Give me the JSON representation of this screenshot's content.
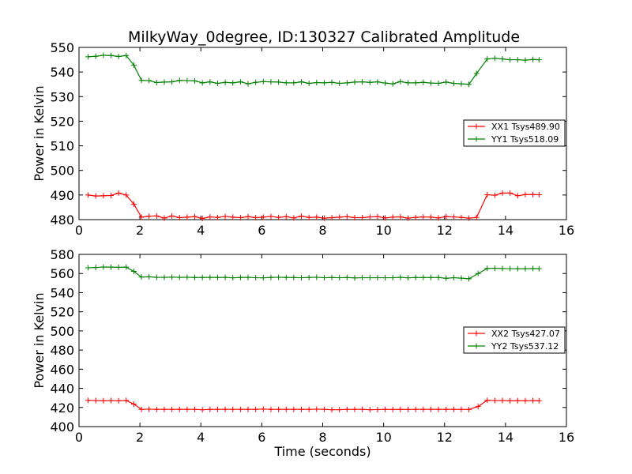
{
  "figure": {
    "title": "MilkyWay_0degree, ID:130327 Calibrated Amplitude"
  },
  "chart_data": [
    {
      "type": "line",
      "title": "MilkyWay_0degree, ID:130327 Calibrated Amplitude",
      "xlabel": "",
      "ylabel": "Power in Kelvin",
      "xlim": [
        0,
        16
      ],
      "ylim": [
        480,
        550
      ],
      "xticks": [
        0,
        2,
        4,
        6,
        8,
        10,
        12,
        14,
        16
      ],
      "yticks": [
        480,
        490,
        500,
        510,
        520,
        530,
        540,
        550
      ],
      "grid": false,
      "legend": "center-right",
      "x": [
        0.3,
        0.55,
        0.8,
        1.05,
        1.3,
        1.55,
        1.8,
        2.05,
        2.3,
        2.55,
        2.8,
        3.05,
        3.3,
        3.55,
        3.8,
        4.05,
        4.3,
        4.55,
        4.8,
        5.05,
        5.3,
        5.55,
        5.8,
        6.05,
        6.3,
        6.55,
        6.8,
        7.05,
        7.3,
        7.55,
        7.8,
        8.05,
        8.3,
        8.55,
        8.8,
        9.05,
        9.3,
        9.55,
        9.8,
        10.05,
        10.3,
        10.55,
        10.8,
        11.05,
        11.3,
        11.55,
        11.8,
        12.05,
        12.3,
        12.55,
        12.8,
        13.15,
        13.4,
        13.65,
        13.9,
        14.15,
        14.4,
        14.65,
        14.9,
        15.1
      ],
      "series": [
        {
          "name": "XX1 Tsys489.90",
          "color": "#ff0000",
          "values": [
            490.0,
            489.6,
            489.7,
            489.8,
            490.8,
            490.0,
            486.3,
            481.0,
            481.4,
            481.5,
            480.6,
            481.5,
            480.8,
            481.0,
            481.2,
            480.5,
            481.1,
            480.9,
            481.3,
            481.0,
            480.8,
            481.2,
            480.8,
            481.0,
            481.3,
            480.9,
            481.2,
            480.7,
            481.4,
            480.9,
            481.0,
            480.6,
            480.8,
            481.0,
            481.2,
            480.8,
            480.8,
            481.1,
            481.2,
            480.7,
            481.0,
            481.1,
            480.6,
            480.9,
            481.1,
            481.0,
            480.7,
            481.2,
            481.1,
            480.9,
            480.6,
            480.9,
            490.1,
            489.9,
            490.8,
            490.8,
            489.7,
            490.2,
            490.2,
            490.1
          ],
          "x": [
            0.3,
            0.55,
            0.8,
            1.05,
            1.3,
            1.55,
            1.8,
            2.05,
            2.3,
            2.55,
            2.8,
            3.05,
            3.3,
            3.55,
            3.8,
            4.05,
            4.3,
            4.55,
            4.8,
            5.05,
            5.3,
            5.55,
            5.8,
            6.05,
            6.3,
            6.55,
            6.8,
            7.05,
            7.3,
            7.55,
            7.8,
            8.05,
            8.3,
            8.55,
            8.8,
            9.05,
            9.3,
            9.55,
            9.8,
            10.05,
            10.3,
            10.55,
            10.8,
            11.05,
            11.3,
            11.55,
            11.8,
            12.05,
            12.3,
            12.55,
            12.8,
            13.05,
            13.4,
            13.65,
            13.9,
            14.15,
            14.4,
            14.65,
            14.9,
            15.1
          ]
        },
        {
          "name": "YY1 Tsys518.09",
          "color": "#008000",
          "values": [
            546.2,
            546.4,
            546.8,
            546.7,
            546.3,
            546.7,
            542.8,
            536.6,
            536.5,
            535.7,
            535.9,
            536.0,
            536.6,
            536.5,
            536.4,
            535.6,
            536.0,
            535.4,
            535.8,
            535.6,
            536.0,
            535.2,
            535.8,
            536.1,
            536.0,
            535.9,
            535.6,
            535.6,
            536.0,
            535.4,
            535.7,
            535.6,
            535.8,
            535.4,
            535.6,
            535.9,
            536.0,
            535.8,
            536.0,
            535.5,
            535.2,
            536.1,
            535.6,
            535.6,
            535.8,
            535.5,
            535.4,
            535.9,
            535.4,
            535.2,
            535.0,
            539.4,
            545.3,
            545.6,
            545.3,
            545.0,
            545.0,
            544.8,
            545.1,
            545.0
          ],
          "x": [
            0.3,
            0.55,
            0.8,
            1.05,
            1.3,
            1.55,
            1.8,
            2.05,
            2.3,
            2.55,
            2.8,
            3.05,
            3.3,
            3.55,
            3.8,
            4.05,
            4.3,
            4.55,
            4.8,
            5.05,
            5.3,
            5.55,
            5.8,
            6.05,
            6.3,
            6.55,
            6.8,
            7.05,
            7.3,
            7.55,
            7.8,
            8.05,
            8.3,
            8.55,
            8.8,
            9.05,
            9.3,
            9.55,
            9.8,
            10.05,
            10.3,
            10.55,
            10.8,
            11.05,
            11.3,
            11.55,
            11.8,
            12.05,
            12.3,
            12.55,
            12.8,
            13.05,
            13.4,
            13.65,
            13.9,
            14.15,
            14.4,
            14.65,
            14.9,
            15.1
          ]
        }
      ]
    },
    {
      "type": "line",
      "title": "",
      "xlabel": "Time (seconds)",
      "ylabel": "Power in Kelvin",
      "xlim": [
        0,
        16
      ],
      "ylim": [
        400,
        580
      ],
      "xticks": [
        0,
        2,
        4,
        6,
        8,
        10,
        12,
        14,
        16
      ],
      "yticks": [
        400,
        420,
        440,
        460,
        480,
        500,
        520,
        540,
        560,
        580
      ],
      "grid": false,
      "legend": "center-right",
      "series": [
        {
          "name": "XX2 Tsys427.07",
          "color": "#ff0000",
          "values": [
            427.5,
            427.2,
            427.0,
            427.2,
            427.0,
            427.3,
            423.5,
            418.0,
            418.2,
            418.0,
            418.0,
            418.0,
            418.0,
            418.0,
            418.0,
            417.6,
            418.0,
            418.0,
            418.0,
            418.0,
            418.0,
            418.0,
            418.0,
            418.3,
            418.0,
            418.0,
            418.0,
            418.0,
            418.0,
            418.0,
            418.2,
            418.0,
            417.6,
            417.7,
            418.0,
            418.0,
            418.0,
            417.6,
            417.8,
            418.0,
            417.9,
            418.0,
            417.9,
            418.0,
            418.0,
            418.0,
            418.0,
            418.0,
            418.0,
            418.0,
            417.9,
            421.0,
            427.5,
            427.2,
            427.3,
            427.0,
            427.1,
            427.0,
            427.2,
            427.0
          ],
          "x": [
            0.3,
            0.55,
            0.8,
            1.05,
            1.3,
            1.55,
            1.8,
            2.05,
            2.3,
            2.55,
            2.8,
            3.05,
            3.3,
            3.55,
            3.8,
            4.05,
            4.3,
            4.55,
            4.8,
            5.05,
            5.3,
            5.55,
            5.8,
            6.05,
            6.3,
            6.55,
            6.8,
            7.05,
            7.3,
            7.55,
            7.8,
            8.05,
            8.3,
            8.55,
            8.8,
            9.05,
            9.3,
            9.55,
            9.8,
            10.05,
            10.3,
            10.55,
            10.8,
            11.05,
            11.3,
            11.55,
            11.8,
            12.05,
            12.3,
            12.55,
            12.8,
            13.1,
            13.4,
            13.65,
            13.9,
            14.15,
            14.4,
            14.65,
            14.9,
            15.1
          ]
        },
        {
          "name": "YY2 Tsys537.12",
          "color": "#008000",
          "values": [
            566.0,
            566.3,
            566.8,
            566.7,
            566.5,
            566.7,
            562.2,
            556.3,
            556.6,
            556.0,
            556.0,
            556.2,
            556.0,
            556.1,
            555.8,
            555.9,
            556.0,
            555.9,
            556.0,
            555.5,
            555.9,
            556.0,
            555.6,
            555.5,
            555.9,
            556.1,
            555.9,
            555.8,
            555.6,
            555.9,
            556.1,
            555.6,
            555.8,
            555.6,
            555.8,
            555.4,
            555.6,
            555.6,
            555.6,
            555.6,
            555.6,
            556.0,
            555.5,
            555.8,
            555.8,
            555.8,
            555.8,
            555.0,
            555.6,
            555.1,
            554.5,
            560.0,
            565.3,
            565.5,
            565.2,
            565.1,
            565.0,
            565.0,
            565.2,
            565.0
          ],
          "x": [
            0.3,
            0.55,
            0.8,
            1.05,
            1.3,
            1.55,
            1.8,
            2.05,
            2.3,
            2.55,
            2.8,
            3.05,
            3.3,
            3.55,
            3.8,
            4.05,
            4.3,
            4.55,
            4.8,
            5.05,
            5.3,
            5.55,
            5.8,
            6.05,
            6.3,
            6.55,
            6.8,
            7.05,
            7.3,
            7.55,
            7.8,
            8.05,
            8.3,
            8.55,
            8.8,
            9.05,
            9.3,
            9.55,
            9.8,
            10.05,
            10.3,
            10.55,
            10.8,
            11.05,
            11.3,
            11.55,
            11.8,
            12.05,
            12.3,
            12.55,
            12.8,
            13.1,
            13.4,
            13.65,
            13.9,
            14.15,
            14.4,
            14.65,
            14.9,
            15.1
          ]
        }
      ]
    }
  ]
}
